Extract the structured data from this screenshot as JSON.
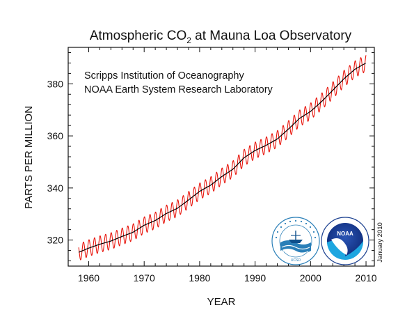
{
  "chart_data": {
    "type": "line",
    "title_prefix": "Atmospheric CO",
    "title_subscript": "2",
    "title_suffix": " at Mauna Loa Observatory",
    "subtitle_lines": [
      "Scripps Institution of Oceanography",
      "NOAA Earth System Research Laboratory"
    ],
    "xlabel": "YEAR",
    "ylabel": "PARTS PER MILLION",
    "date_note": "January 2010",
    "xlim": [
      1956.3,
      2011.5
    ],
    "ylim": [
      310,
      394
    ],
    "x_ticks": [
      1960,
      1970,
      1980,
      1990,
      2000,
      2010
    ],
    "y_ticks": [
      320,
      340,
      360,
      380
    ],
    "grid": false,
    "series": [
      {
        "role": "monthly",
        "color": "#e8150c",
        "seasonal_amplitude_ppm": 3.2,
        "x_range": [
          1958.2,
          2010.0
        ]
      },
      {
        "role": "seasonally-corrected",
        "color": "#000000",
        "x": [
          1958.2,
          1960,
          1962,
          1964,
          1966,
          1968,
          1970,
          1972,
          1974,
          1976,
          1978,
          1980,
          1982,
          1984,
          1986,
          1988,
          1990,
          1992,
          1994,
          1996,
          1998,
          2000,
          2002,
          2004,
          2006,
          2008,
          2010
        ],
        "y": [
          315.3,
          316.9,
          318.4,
          319.6,
          321.4,
          323.0,
          325.7,
          327.5,
          330.2,
          332.2,
          335.4,
          338.7,
          341.1,
          344.4,
          347.2,
          351.6,
          354.4,
          356.4,
          358.8,
          362.6,
          366.7,
          369.4,
          373.2,
          377.5,
          381.9,
          385.6,
          388.0
        ]
      }
    ]
  },
  "logos": [
    {
      "name": "scripps",
      "text": "SCRIPPS INSTITUTION OF OCEANOGRAPHY",
      "bottom_text": "UCSD",
      "colors": [
        "#2a7fb8",
        "#0d4f8b"
      ]
    },
    {
      "name": "noaa",
      "text": "NOAA",
      "ring_text": "NATIONAL OCEANIC AND ATMOSPHERIC ADMINISTRATION",
      "colors": [
        "#1a3f8f",
        "#1ea6e0"
      ]
    }
  ]
}
